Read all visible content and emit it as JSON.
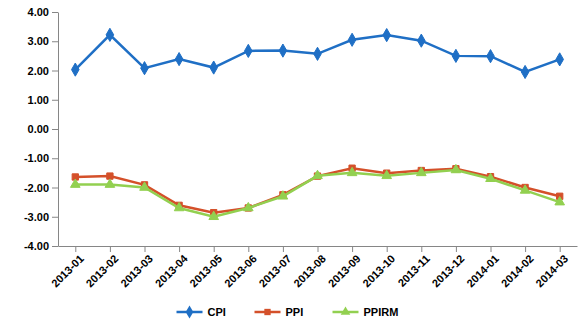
{
  "chart_data": {
    "type": "line",
    "categories": [
      "2013-01",
      "2013-02",
      "2013-03",
      "2013-04",
      "2013-05",
      "2013-06",
      "2013-07",
      "2013-08",
      "2013-09",
      "2013-10",
      "2013-11",
      "2013-12",
      "2014-01",
      "2014-02",
      "2014-03"
    ],
    "series": [
      {
        "name": "CPI",
        "color": "#1f6fc5",
        "marker": "diamond",
        "values": [
          2.03,
          3.22,
          2.08,
          2.39,
          2.1,
          2.67,
          2.68,
          2.57,
          3.05,
          3.21,
          3.02,
          2.5,
          2.49,
          1.95,
          2.38
        ]
      },
      {
        "name": "PPI",
        "color": "#d4502a",
        "marker": "square",
        "values": [
          -1.64,
          -1.61,
          -1.91,
          -2.61,
          -2.86,
          -2.7,
          -2.25,
          -1.61,
          -1.34,
          -1.51,
          -1.42,
          -1.36,
          -1.63,
          -2.0,
          -2.3
        ]
      },
      {
        "name": "PPIRM",
        "color": "#92d050",
        "marker": "triangle",
        "values": [
          -1.9,
          -1.9,
          -2.0,
          -2.7,
          -3.0,
          -2.7,
          -2.3,
          -1.6,
          -1.5,
          -1.6,
          -1.5,
          -1.4,
          -1.7,
          -2.1,
          -2.5
        ]
      }
    ],
    "ylim": [
      -4,
      4
    ],
    "yticks": [
      {
        "value": 4,
        "label": "4.00"
      },
      {
        "value": 3,
        "label": "3.00"
      },
      {
        "value": 2,
        "label": "2.00"
      },
      {
        "value": 1,
        "label": "1.00"
      },
      {
        "value": 0,
        "label": "0.00"
      },
      {
        "value": -1,
        "label": "-1.00"
      },
      {
        "value": -2,
        "label": "-2.00"
      },
      {
        "value": -3,
        "label": "-3.00"
      },
      {
        "value": -4,
        "label": "-4.00"
      }
    ],
    "grid": false,
    "legend": "bottom"
  }
}
